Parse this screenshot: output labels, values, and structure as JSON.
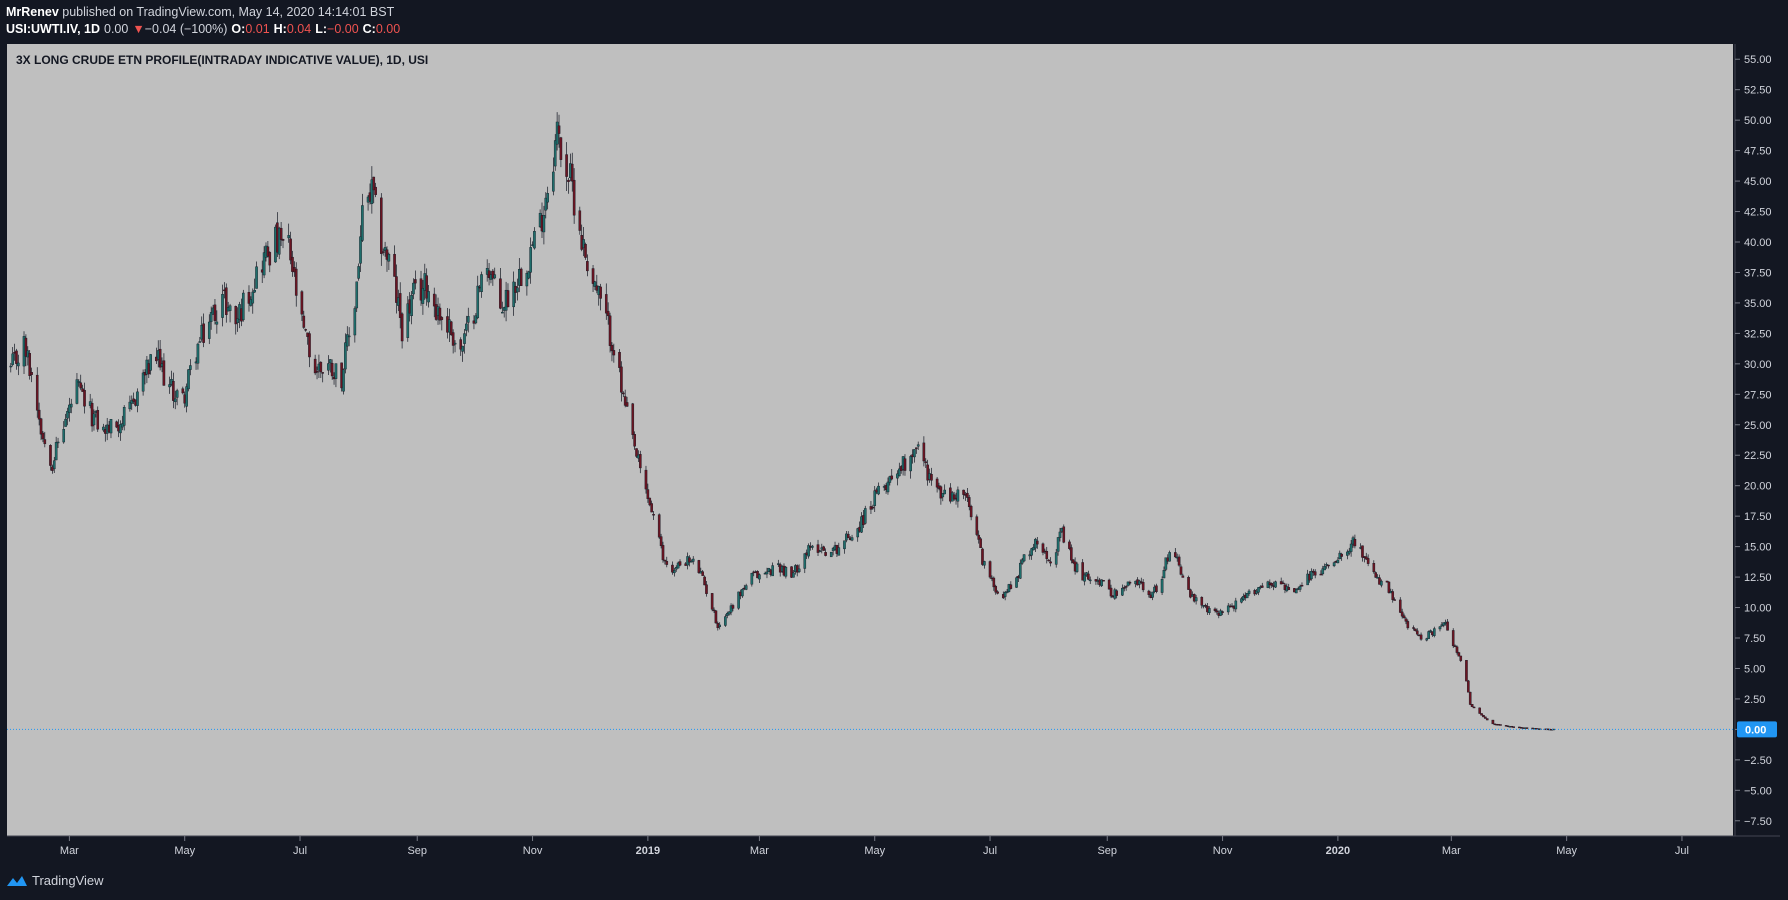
{
  "header": {
    "author": "MrRenev",
    "published": "published on TradingView.com, May 14, 2020 14:14:01 BST",
    "symbol": "USI:UWTI.IV, 1D",
    "last": "0.00",
    "change": "−0.04 (−100%)",
    "o_label": "O:",
    "o_val": "0.01",
    "h_label": "H:",
    "h_val": "0.04",
    "l_label": "L:",
    "l_val": "−0.00",
    "c_label": "C:",
    "c_val": "0.00"
  },
  "chart_data": {
    "type": "candlestick",
    "title": "3X LONG CRUDE ETN PROFILE(INTRADAY INDICATIVE VALUE), 1D, USI",
    "ylim": [
      -8.75,
      56.25
    ],
    "y_ticks": [
      "55.00",
      "52.50",
      "50.00",
      "47.50",
      "45.00",
      "42.50",
      "40.00",
      "37.50",
      "35.00",
      "32.50",
      "30.00",
      "27.50",
      "25.00",
      "22.50",
      "20.00",
      "17.50",
      "15.00",
      "12.50",
      "10.00",
      "7.50",
      "5.00",
      "2.50",
      "0.00",
      "−2.50",
      "−5.00",
      "−7.50"
    ],
    "x_ticks": [
      "Mar",
      "May",
      "Jul",
      "Sep",
      "Nov",
      "2019",
      "Mar",
      "May",
      "Jul",
      "Sep",
      "Nov",
      "2020",
      "Mar",
      "May",
      "Jul"
    ],
    "x_tick_dates": [
      "2018-03-01",
      "2018-05-01",
      "2018-07-01",
      "2018-09-01",
      "2018-11-01",
      "2019-01-01",
      "2019-03-01",
      "2019-05-01",
      "2019-07-01",
      "2019-09-01",
      "2019-11-01",
      "2020-01-01",
      "2020-03-01",
      "2020-05-01",
      "2020-07-01"
    ],
    "bold_ticks": [
      "2019",
      "2020"
    ],
    "xlim": [
      "2018-01-27",
      "2020-07-28"
    ],
    "last_value_label": "0.00",
    "last_value": 0.0,
    "path": [
      [
        "2018-01-29",
        29.5
      ],
      [
        "2018-02-05",
        31.5
      ],
      [
        "2018-02-10",
        28.5
      ],
      [
        "2018-02-15",
        24.0
      ],
      [
        "2018-02-20",
        22.0
      ],
      [
        "2018-02-26",
        25.0
      ],
      [
        "2018-03-05",
        28.0
      ],
      [
        "2018-03-12",
        26.0
      ],
      [
        "2018-03-19",
        24.5
      ],
      [
        "2018-03-26",
        25.0
      ],
      [
        "2018-04-02",
        26.0
      ],
      [
        "2018-04-09",
        29.0
      ],
      [
        "2018-04-16",
        30.5
      ],
      [
        "2018-04-23",
        28.0
      ],
      [
        "2018-04-30",
        27.0
      ],
      [
        "2018-05-07",
        31.0
      ],
      [
        "2018-05-14",
        33.5
      ],
      [
        "2018-05-21",
        35.5
      ],
      [
        "2018-05-28",
        33.5
      ],
      [
        "2018-06-04",
        36.0
      ],
      [
        "2018-06-11",
        38.5
      ],
      [
        "2018-06-18",
        40.0
      ],
      [
        "2018-06-25",
        39.5
      ],
      [
        "2018-07-02",
        33.0
      ],
      [
        "2018-07-09",
        29.5
      ],
      [
        "2018-07-16",
        30.0
      ],
      [
        "2018-07-23",
        29.0
      ],
      [
        "2018-07-30",
        35.0
      ],
      [
        "2018-08-03",
        42.0
      ],
      [
        "2018-08-08",
        44.0
      ],
      [
        "2018-08-13",
        40.0
      ],
      [
        "2018-08-18",
        38.0
      ],
      [
        "2018-08-24",
        33.0
      ],
      [
        "2018-08-30",
        35.5
      ],
      [
        "2018-09-06",
        36.5
      ],
      [
        "2018-09-13",
        34.0
      ],
      [
        "2018-09-18",
        33.0
      ],
      [
        "2018-09-24",
        31.0
      ],
      [
        "2018-10-01",
        34.5
      ],
      [
        "2018-10-08",
        38.5
      ],
      [
        "2018-10-15",
        34.5
      ],
      [
        "2018-10-22",
        36.5
      ],
      [
        "2018-10-29",
        38.5
      ],
      [
        "2018-11-05",
        41.5
      ],
      [
        "2018-11-10",
        45.5
      ],
      [
        "2018-11-14",
        49.0
      ],
      [
        "2018-11-18",
        46.5
      ],
      [
        "2018-11-22",
        44.5
      ],
      [
        "2018-11-28",
        39.5
      ],
      [
        "2018-12-04",
        36.5
      ],
      [
        "2018-12-10",
        33.5
      ],
      [
        "2018-12-14",
        31.5
      ],
      [
        "2018-12-19",
        27.0
      ],
      [
        "2018-12-25",
        23.0
      ],
      [
        "2018-12-30",
        20.0
      ],
      [
        "2019-01-04",
        17.5
      ],
      [
        "2019-01-09",
        14.0
      ],
      [
        "2019-01-15",
        13.0
      ],
      [
        "2019-01-20",
        14.0
      ],
      [
        "2019-01-27",
        13.5
      ],
      [
        "2019-02-02",
        11.0
      ],
      [
        "2019-02-07",
        8.5
      ],
      [
        "2019-02-12",
        9.5
      ],
      [
        "2019-02-18",
        11.0
      ],
      [
        "2019-02-25",
        12.5
      ],
      [
        "2019-03-04",
        12.8
      ],
      [
        "2019-03-11",
        13.5
      ],
      [
        "2019-03-18",
        12.5
      ],
      [
        "2019-03-25",
        14.5
      ],
      [
        "2019-04-01",
        15.0
      ],
      [
        "2019-04-08",
        14.5
      ],
      [
        "2019-04-15",
        15.5
      ],
      [
        "2019-04-22",
        16.5
      ],
      [
        "2019-04-29",
        18.5
      ],
      [
        "2019-05-06",
        20.0
      ],
      [
        "2019-05-13",
        21.5
      ],
      [
        "2019-05-18",
        22.0
      ],
      [
        "2019-05-23",
        23.5
      ],
      [
        "2019-05-28",
        21.5
      ],
      [
        "2019-06-03",
        19.5
      ],
      [
        "2019-06-10",
        19.0
      ],
      [
        "2019-06-17",
        19.5
      ],
      [
        "2019-06-22",
        17.0
      ],
      [
        "2019-06-27",
        14.0
      ],
      [
        "2019-07-02",
        12.0
      ],
      [
        "2019-07-08",
        11.0
      ],
      [
        "2019-07-15",
        12.5
      ],
      [
        "2019-07-20",
        14.5
      ],
      [
        "2019-07-27",
        15.5
      ],
      [
        "2019-08-02",
        14.0
      ],
      [
        "2019-08-08",
        16.0
      ],
      [
        "2019-08-14",
        13.5
      ],
      [
        "2019-08-20",
        12.5
      ],
      [
        "2019-08-26",
        12.5
      ],
      [
        "2019-09-01",
        11.5
      ],
      [
        "2019-09-07",
        11.0
      ],
      [
        "2019-09-13",
        12.0
      ],
      [
        "2019-09-19",
        12.0
      ],
      [
        "2019-09-25",
        11.0
      ],
      [
        "2019-10-01",
        13.0
      ],
      [
        "2019-10-05",
        15.5
      ],
      [
        "2019-10-10",
        13.0
      ],
      [
        "2019-10-15",
        11.0
      ],
      [
        "2019-10-21",
        10.0
      ],
      [
        "2019-10-28",
        9.5
      ],
      [
        "2019-11-04",
        10.0
      ],
      [
        "2019-11-11",
        10.5
      ],
      [
        "2019-11-18",
        11.5
      ],
      [
        "2019-11-25",
        12.0
      ],
      [
        "2019-12-02",
        12.0
      ],
      [
        "2019-12-09",
        11.0
      ],
      [
        "2019-12-16",
        12.5
      ],
      [
        "2019-12-23",
        13.0
      ],
      [
        "2019-12-30",
        14.0
      ],
      [
        "2020-01-06",
        15.0
      ],
      [
        "2020-01-10",
        15.5
      ],
      [
        "2020-01-15",
        14.0
      ],
      [
        "2020-01-20",
        12.5
      ],
      [
        "2020-01-26",
        12.0
      ],
      [
        "2020-02-01",
        10.0
      ],
      [
        "2020-02-07",
        8.5
      ],
      [
        "2020-02-14",
        7.5
      ],
      [
        "2020-02-21",
        8.0
      ],
      [
        "2020-02-26",
        9.0
      ],
      [
        "2020-03-02",
        7.0
      ],
      [
        "2020-03-06",
        5.5
      ],
      [
        "2020-03-09",
        4.0
      ],
      [
        "2020-03-11",
        2.0
      ],
      [
        "2020-03-16",
        1.3
      ],
      [
        "2020-03-22",
        0.5
      ],
      [
        "2020-03-29",
        0.3
      ],
      [
        "2020-04-07",
        0.15
      ],
      [
        "2020-04-16",
        0.05
      ],
      [
        "2020-04-25",
        0.01
      ]
    ]
  },
  "footer": {
    "brand": "TradingView"
  }
}
